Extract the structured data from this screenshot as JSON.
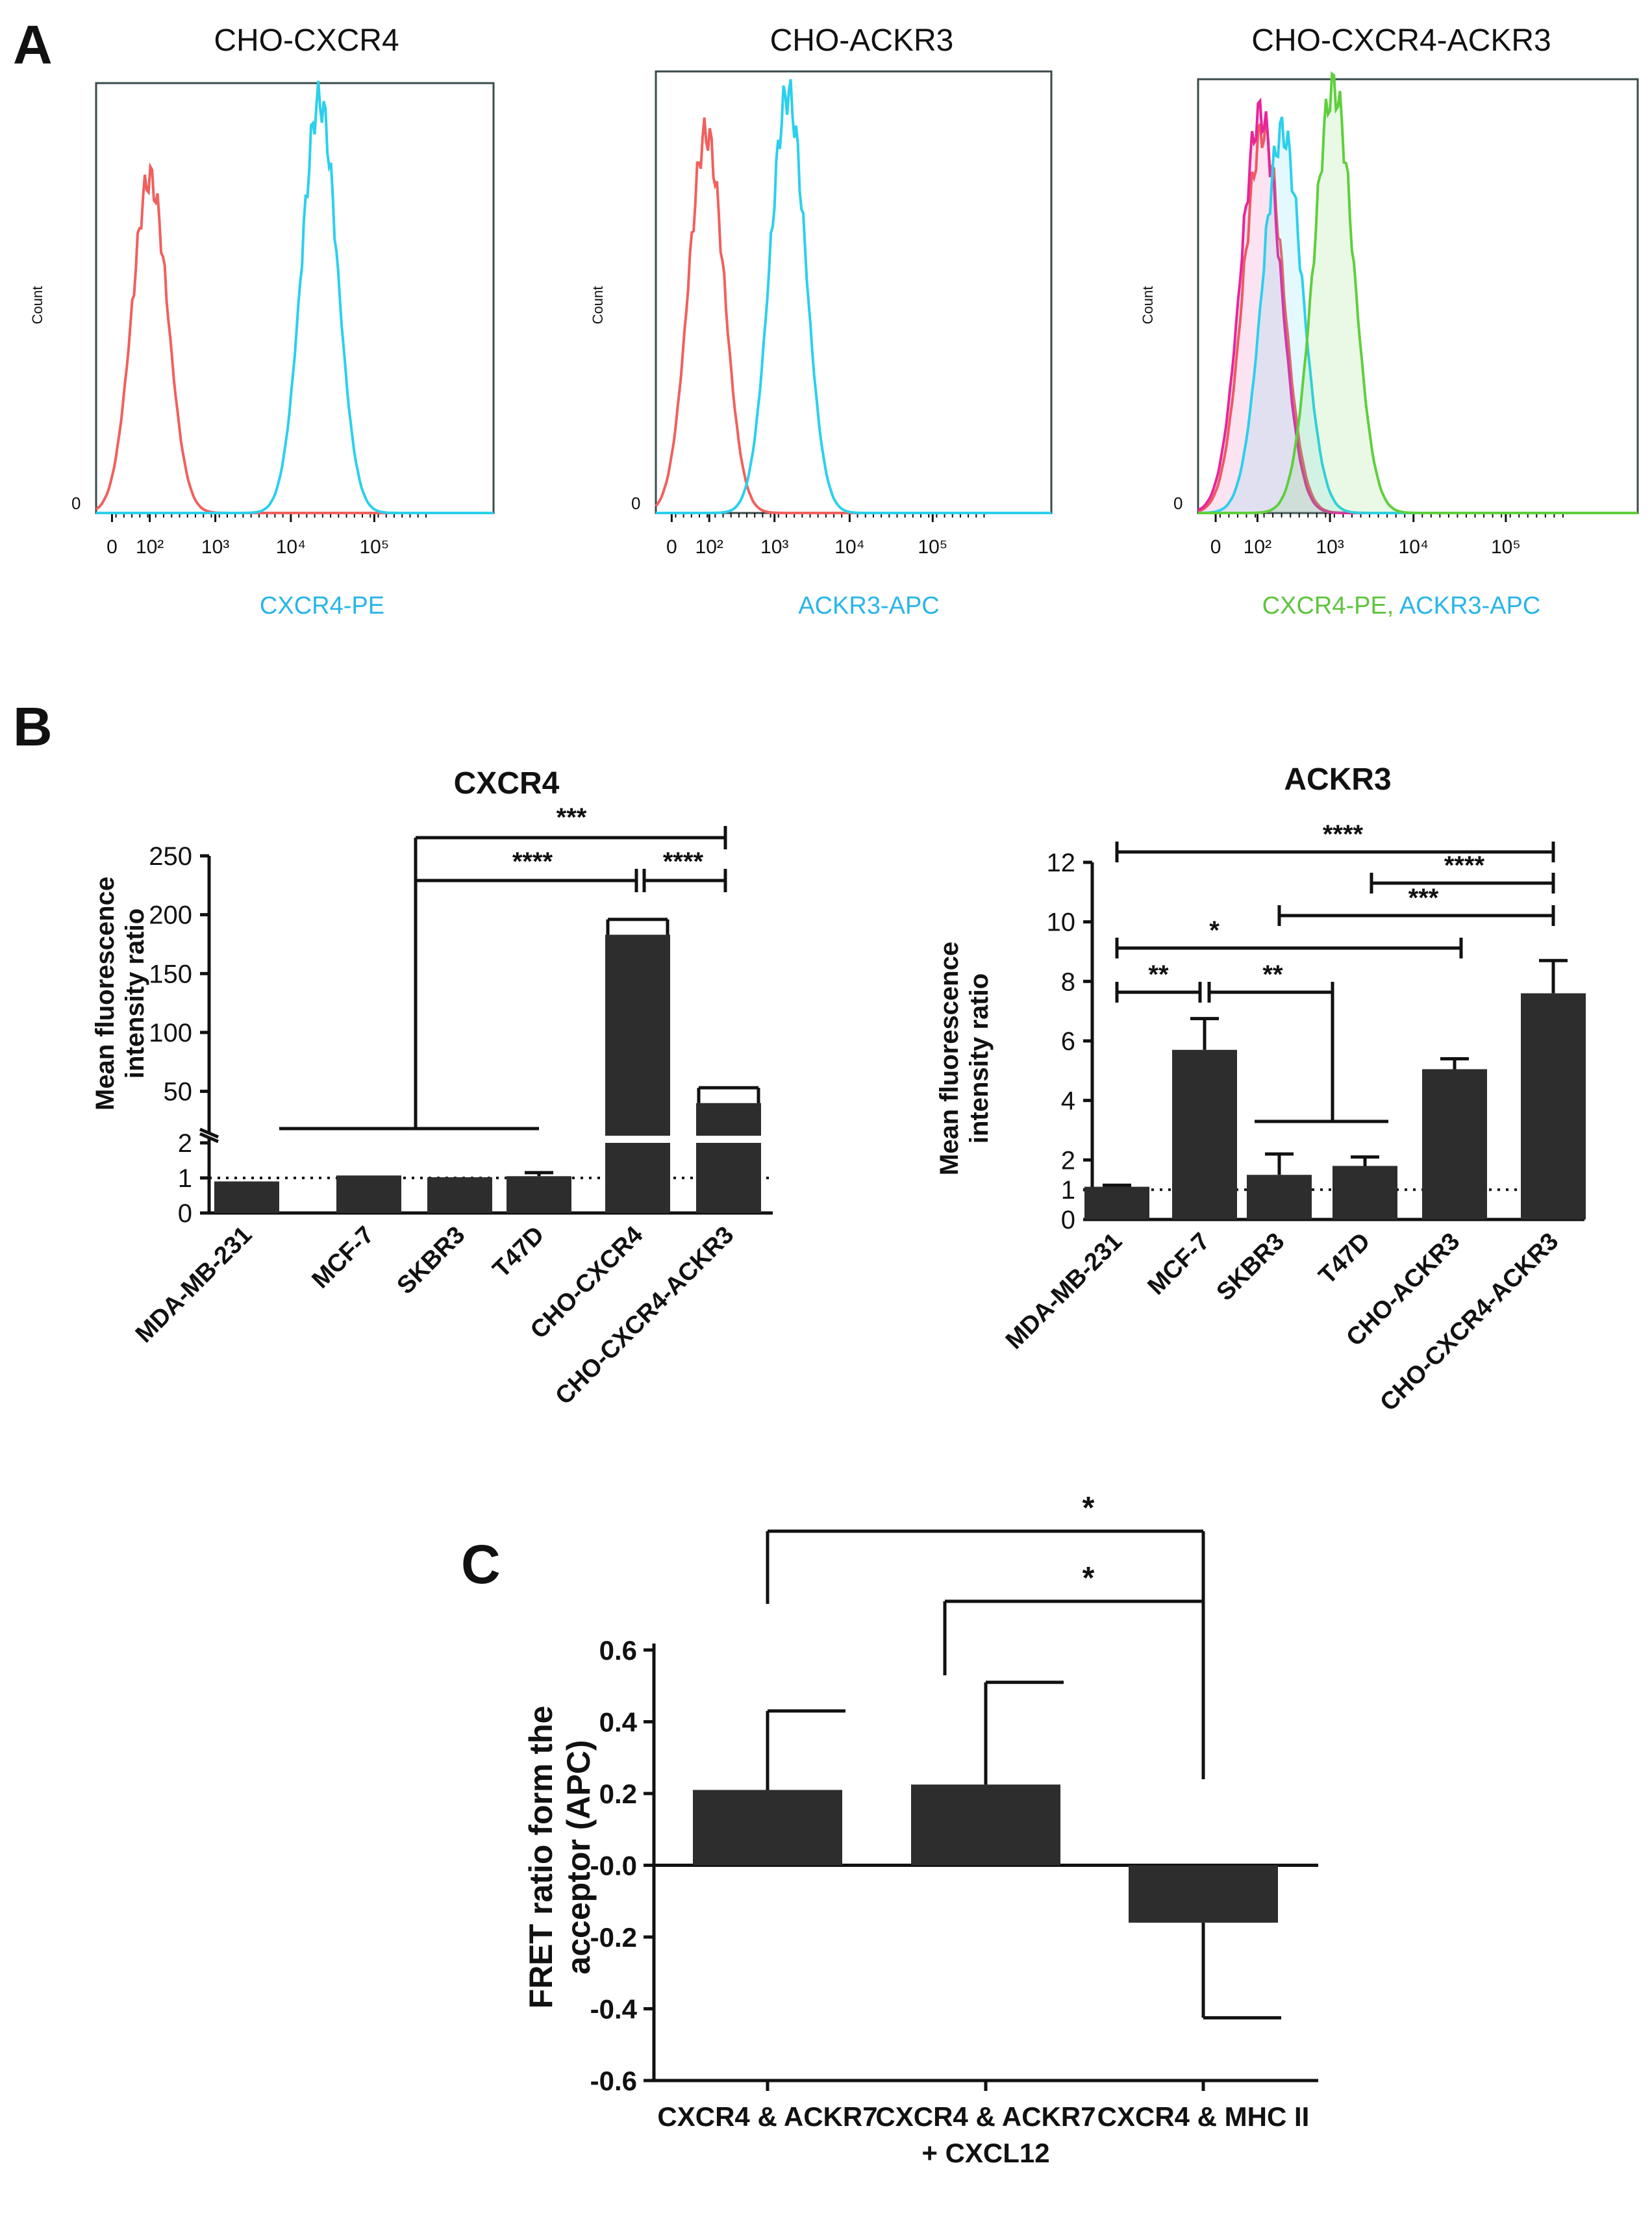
{
  "panel_labels": [
    "A",
    "B",
    "C"
  ],
  "colors": {
    "control": "#f0605e",
    "control_magenta": "#e8259a",
    "cyan": "#2bd0ec",
    "green": "#5fcf3c",
    "bar": "#2d2d2d",
    "tick_label_blue": "#29b5e8",
    "tick_label_green": "#5fc43e"
  },
  "chart_data": [
    {
      "id": "A1",
      "type": "area",
      "title": "CHO-CXCR4",
      "ylabel": "Count",
      "xlabel_parts": [
        {
          "text": "CXCR4-PE",
          "color": "#29b5e8"
        }
      ],
      "x_scale": "logicle",
      "y_zero_label": "0",
      "x_ticks": [
        "0",
        "10²",
        "10³",
        "10⁴",
        "10⁵"
      ],
      "series": [
        {
          "role": "isotype-control",
          "color": "#f0605e",
          "peak_x": 100,
          "relative_height": 0.78
        },
        {
          "role": "CXCR4-PE",
          "color": "#2bd0ec",
          "peak_x": 22000,
          "relative_height": 0.96
        }
      ]
    },
    {
      "id": "A2",
      "type": "area",
      "title": "CHO-ACKR3",
      "ylabel": "Count",
      "xlabel_parts": [
        {
          "text": "ACKR3-APC",
          "color": "#29b5e8"
        }
      ],
      "x_scale": "logicle",
      "y_zero_label": "0",
      "x_ticks": [
        "0",
        "10²",
        "10³",
        "10⁴",
        "10⁵"
      ],
      "series": [
        {
          "role": "isotype-control",
          "color": "#f0605e",
          "peak_x": 80,
          "relative_height": 0.86
        },
        {
          "role": "ACKR3-APC",
          "color": "#2bd0ec",
          "peak_x": 1500,
          "relative_height": 0.95
        }
      ]
    },
    {
      "id": "A3",
      "type": "area",
      "title": "CHO-CXCR4-ACKR3",
      "ylabel": "Count",
      "xlabel_parts": [
        {
          "text": "CXCR4-PE,",
          "color": "#5fc43e"
        },
        {
          "text": " ACKR3-APC",
          "color": "#29b5e8"
        }
      ],
      "x_scale": "logicle",
      "y_zero_label": "0",
      "x_ticks": [
        "0",
        "10²",
        "10³",
        "10⁴",
        "10⁵"
      ],
      "series": [
        {
          "role": "isotype-control",
          "color": "#f0605e",
          "peak_x": 120,
          "relative_height": 0.88
        },
        {
          "role": "isotype-control",
          "color": "#e8259a",
          "peak_x": 110,
          "relative_height": 0.92
        },
        {
          "role": "ACKR3-APC",
          "color": "#2bd0ec",
          "peak_x": 220,
          "relative_height": 0.88
        },
        {
          "role": "CXCR4-PE",
          "color": "#5fcf3c",
          "peak_x": 1100,
          "relative_height": 0.98
        }
      ]
    },
    {
      "id": "B1",
      "type": "bar",
      "title": "CXCR4",
      "ylabel": [
        "Mean fluorescence",
        "intensity ratio"
      ],
      "broken_axis": true,
      "y_ticks_lower": [
        0,
        1,
        2
      ],
      "y_ticks_upper": [
        50,
        100,
        150,
        200,
        250
      ],
      "ylim_lower": [
        0,
        2
      ],
      "ylim_upper": [
        20,
        250
      ],
      "reference_line": 1,
      "categories": [
        "MDA-MB-231",
        "MCF-7",
        "SKBR3",
        "T47D",
        "CHO-CXCR4",
        "CHO-CXCR4-ACKR3"
      ],
      "values": [
        0.9,
        1.07,
        1.02,
        1.05,
        183,
        40
      ],
      "errors": [
        0.0,
        0.0,
        0.0,
        0.1,
        13,
        13
      ],
      "significance": [
        {
          "label": "***",
          "from": "SKBR3",
          "to": "CHO-CXCR4-ACKR3"
        },
        {
          "label": "****",
          "from": "SKBR3",
          "to": "CHO-CXCR4"
        },
        {
          "label": "****",
          "from": "CHO-CXCR4",
          "to": "CHO-CXCR4-ACKR3"
        }
      ]
    },
    {
      "id": "B2",
      "type": "bar",
      "title": "ACKR3",
      "ylabel": [
        "Mean fluorescence",
        "intensity ratio"
      ],
      "y_ticks": [
        0,
        1,
        2,
        4,
        6,
        8,
        10,
        12
      ],
      "ylim": [
        0,
        12
      ],
      "reference_line": 1,
      "categories": [
        "MDA-MB-231",
        "MCF-7",
        "SKBR3",
        "T47D",
        "CHO-ACKR3",
        "CHO-CXCR4-ACKR3"
      ],
      "values": [
        1.1,
        5.7,
        1.5,
        1.8,
        5.05,
        7.6
      ],
      "errors": [
        0.05,
        1.05,
        0.7,
        0.3,
        0.35,
        1.1
      ],
      "significance": [
        {
          "label": "****",
          "from": "MDA-MB-231",
          "to": "CHO-CXCR4-ACKR3"
        },
        {
          "label": "****",
          "from": "T47D",
          "to": "CHO-CXCR4-ACKR3"
        },
        {
          "label": "***",
          "from": "SKBR3",
          "to": "CHO-CXCR4-ACKR3"
        },
        {
          "label": "*",
          "from": "MDA-MB-231",
          "to": "CHO-ACKR3"
        },
        {
          "label": "**",
          "from": "MDA-MB-231",
          "to": "MCF-7"
        },
        {
          "label": "**",
          "from": "MCF-7",
          "to": "SKBR3 / T47D"
        }
      ]
    },
    {
      "id": "C",
      "type": "bar",
      "ylabel": [
        "FRET ratio form the",
        "acceptor (APC)"
      ],
      "y_ticks": [
        "-0.6",
        "-0.4",
        "-0.2",
        "-0.0",
        "0.2",
        "0.4",
        "0.6"
      ],
      "ylim": [
        -0.6,
        0.6
      ],
      "categories": [
        [
          "CXCR4 & ACKR7"
        ],
        [
          "CXCR4 & ACKR7",
          "+ CXCL12"
        ],
        [
          "CXCR4 & MHC II"
        ]
      ],
      "values": [
        0.21,
        0.225,
        -0.16
      ],
      "errors": [
        0.22,
        0.285,
        0.265
      ],
      "significance": [
        {
          "label": "*",
          "from": "CXCR4 & ACKR7",
          "to": "CXCR4 & MHC II"
        },
        {
          "label": "*",
          "from": "CXCR4 & ACKR7 + CXCL12",
          "to": "CXCR4 & MHC II"
        }
      ]
    }
  ]
}
